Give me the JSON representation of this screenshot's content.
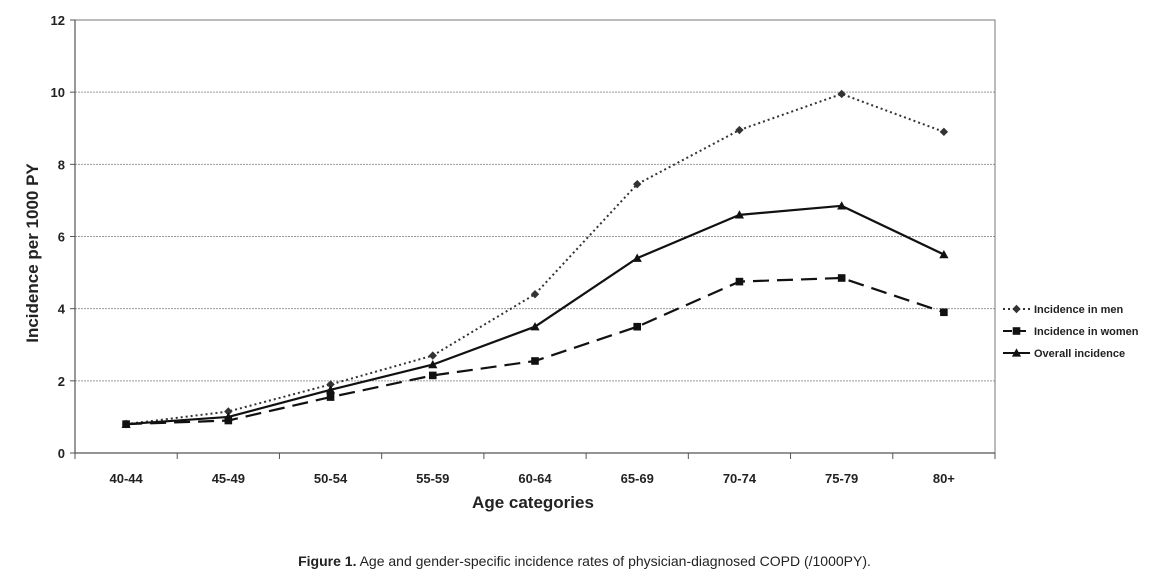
{
  "chart_data": {
    "type": "line",
    "categories": [
      "40-44",
      "45-49",
      "50-54",
      "55-59",
      "60-64",
      "65-69",
      "70-74",
      "75-79",
      "80+"
    ],
    "series": [
      {
        "name": "Incidence in men",
        "values": [
          0.8,
          1.15,
          1.9,
          2.7,
          4.4,
          7.45,
          8.95,
          9.95,
          8.9
        ],
        "style": "dotted",
        "marker": "diamond",
        "color": "#333333"
      },
      {
        "name": "Incidence in women",
        "values": [
          0.8,
          0.9,
          1.55,
          2.15,
          2.55,
          3.5,
          4.75,
          4.85,
          3.9
        ],
        "style": "dashed",
        "marker": "square",
        "color": "#111111"
      },
      {
        "name": "Overall incidence",
        "values": [
          0.8,
          1.0,
          1.75,
          2.45,
          3.5,
          5.4,
          6.6,
          6.85,
          5.5
        ],
        "style": "solid",
        "marker": "triangle",
        "color": "#111111"
      }
    ],
    "xlabel": "Age categories",
    "ylabel": "Incidence per 1000 PY",
    "ylim": [
      0,
      12
    ],
    "yticks": [
      0,
      2,
      4,
      6,
      8,
      10,
      12
    ],
    "grid": true,
    "legend_position": "right"
  },
  "caption": {
    "label": "Figure 1.",
    "text": " Age and gender-specific incidence rates of physician-diagnosed COPD (/1000PY)."
  }
}
